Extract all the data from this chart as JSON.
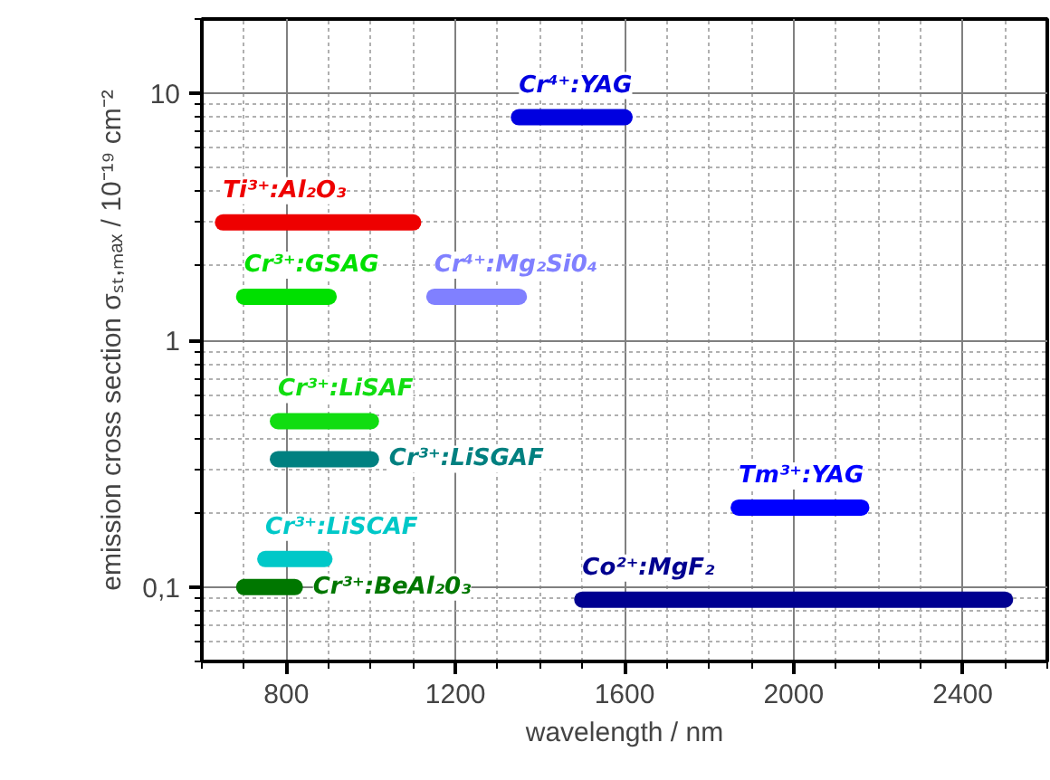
{
  "chart_data": {
    "type": "line",
    "xlabel": "wavelength / nm",
    "ylabel": "emission cross section σₛₜ,ₘₐₓ / 10⁻¹⁹ cm⁻²",
    "log": "y",
    "grid": true,
    "marker": "none",
    "line_style": "solid",
    "xlim": [
      600,
      2600
    ],
    "xticks": [
      800,
      1200,
      1600,
      2000,
      2400
    ],
    "ylim": [
      0.05,
      20
    ],
    "yticks": [
      {
        "value": 0.1,
        "label": "0,1"
      },
      1,
      10
    ],
    "series": [
      {
        "name": "Cr⁴⁺:YAG",
        "color": "#0000e0",
        "x": [
          1350,
          1600
        ],
        "values": [
          8,
          8
        ]
      },
      {
        "name": "Ti³⁺:Al₂O₃",
        "color": "#ee0000",
        "x": [
          650,
          1100
        ],
        "values": [
          3,
          3
        ]
      },
      {
        "name": "Cr³⁺:GSAG",
        "color": "#00e000",
        "x": [
          700,
          900
        ],
        "values": [
          1.5,
          1.5
        ]
      },
      {
        "name": "Cr⁴⁺:Mg₂Si0₄",
        "color": "#8080ff",
        "x": [
          1150,
          1350
        ],
        "values": [
          1.5,
          1.5
        ]
      },
      {
        "name": "Cr³⁺:LiSAF",
        "color": "#11dd11",
        "x": [
          780,
          1000
        ],
        "values": [
          0.47,
          0.47
        ]
      },
      {
        "name": "Cr³⁺:LiSGAF",
        "color": "#008080",
        "x": [
          780,
          1000
        ],
        "values": [
          0.33,
          0.33
        ]
      },
      {
        "name": "Cr³⁺:LiSCAF",
        "color": "#00c8c8",
        "x": [
          750,
          890
        ],
        "values": [
          0.13,
          0.13
        ]
      },
      {
        "name": "Cr³⁺:BeAl₂0₃",
        "color": "#007700",
        "x": [
          700,
          820
        ],
        "values": [
          0.1,
          0.1
        ]
      },
      {
        "name": "Tm³⁺:YAG",
        "color": "#0000ff",
        "x": [
          1870,
          2160
        ],
        "values": [
          0.21,
          0.21
        ]
      },
      {
        "name": "Co²⁺:MgF₂",
        "color": "#000090",
        "x": [
          1500,
          2500
        ],
        "values": [
          0.089,
          0.089
        ]
      }
    ]
  }
}
